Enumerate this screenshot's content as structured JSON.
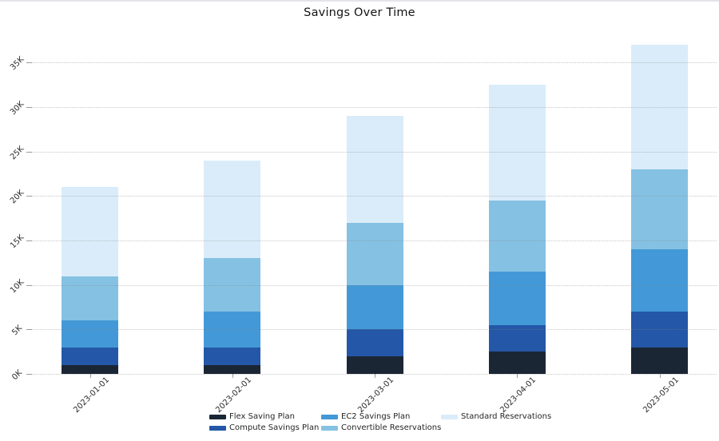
{
  "title": "Savings Over Time",
  "chart_data": {
    "type": "bar",
    "stacked": true,
    "title": "Savings Over Time",
    "xlabel": "",
    "ylabel": "",
    "categories": [
      "2023-01-01",
      "2023-02-01",
      "2023-03-01",
      "2023-04-01",
      "2023-05-01"
    ],
    "series": [
      {
        "name": "Flex Saving Plan",
        "color": "#1B2635",
        "values": [
          1000,
          1000,
          2000,
          2500,
          3000
        ]
      },
      {
        "name": "Compute Savings Plan",
        "color": "#2457A7",
        "values": [
          2000,
          2000,
          3000,
          3000,
          4000
        ]
      },
      {
        "name": "EC2 Savings Plan",
        "color": "#4399D7",
        "values": [
          3000,
          4000,
          5000,
          6000,
          7000
        ]
      },
      {
        "name": "Convertible Reservations",
        "color": "#85C1E3",
        "values": [
          5000,
          6000,
          7000,
          8000,
          9000
        ]
      },
      {
        "name": "Standard Reservations",
        "color": "#DAECF9",
        "values": [
          10000,
          11000,
          12000,
          13000,
          14000
        ]
      }
    ],
    "totals": [
      21000,
      24000,
      29000,
      32500,
      37000
    ],
    "y_ticks": [
      {
        "value": 0,
        "label": "0K"
      },
      {
        "value": 5000,
        "label": "5K"
      },
      {
        "value": 10000,
        "label": "10K"
      },
      {
        "value": 15000,
        "label": "15K"
      },
      {
        "value": 20000,
        "label": "20K"
      },
      {
        "value": 25000,
        "label": "25K"
      },
      {
        "value": 30000,
        "label": "30K"
      },
      {
        "value": 35000,
        "label": "35K"
      }
    ],
    "ylim": [
      0,
      38000
    ],
    "grid": "horizontal-dotted-above-bars",
    "legend_position": "bottom-center"
  }
}
